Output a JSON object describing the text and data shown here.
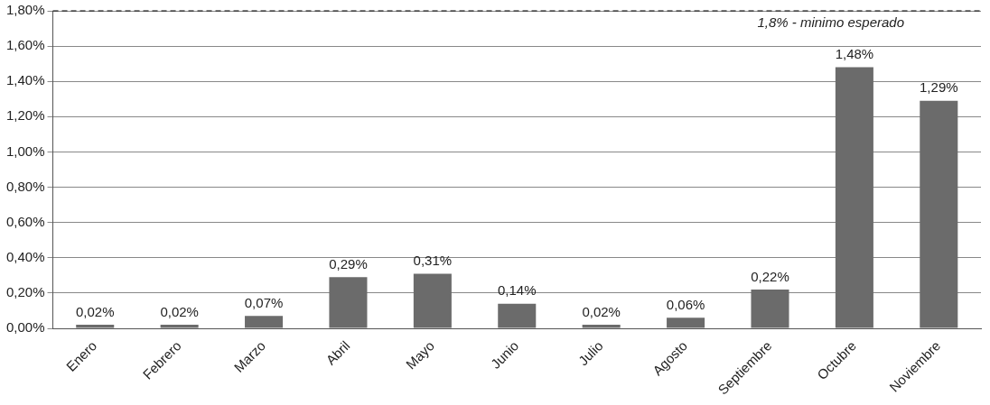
{
  "chart_data": {
    "type": "bar",
    "categories": [
      "Enero",
      "Febrero",
      "Marzo",
      "Abril",
      "Mayo",
      "Junio",
      "Julio",
      "Agosto",
      "Septiembre",
      "Octubre",
      "Noviembre"
    ],
    "values": [
      0.02,
      0.02,
      0.07,
      0.29,
      0.31,
      0.14,
      0.02,
      0.06,
      0.22,
      1.48,
      1.29
    ],
    "value_labels": [
      "0,02%",
      "0,02%",
      "0,07%",
      "0,29%",
      "0,31%",
      "0,14%",
      "0,02%",
      "0,06%",
      "0,22%",
      "1,48%",
      "1,29%"
    ],
    "color": "#6b6b6b",
    "ylim": [
      0,
      1.8
    ],
    "yticks": [
      {
        "value": 0,
        "label": "0,00%"
      },
      {
        "value": 0.2,
        "label": "0,20%"
      },
      {
        "value": 0.4,
        "label": "0,40%"
      },
      {
        "value": 0.6,
        "label": "0,60%"
      },
      {
        "value": 0.8,
        "label": "0,80%"
      },
      {
        "value": 1,
        "label": "1,00%"
      },
      {
        "value": 1.2,
        "label": "1,20%"
      },
      {
        "value": 1.4,
        "label": "1,40%"
      },
      {
        "value": 1.6,
        "label": "1,60%"
      },
      {
        "value": 1.8,
        "label": "1,80%"
      }
    ],
    "ref_lines": [
      {
        "axis": "y",
        "value": 1.8,
        "label": "1,8% - minimo esperado",
        "color": "#000000",
        "line_style": "dashed"
      }
    ],
    "grid": "y",
    "legend": false
  }
}
